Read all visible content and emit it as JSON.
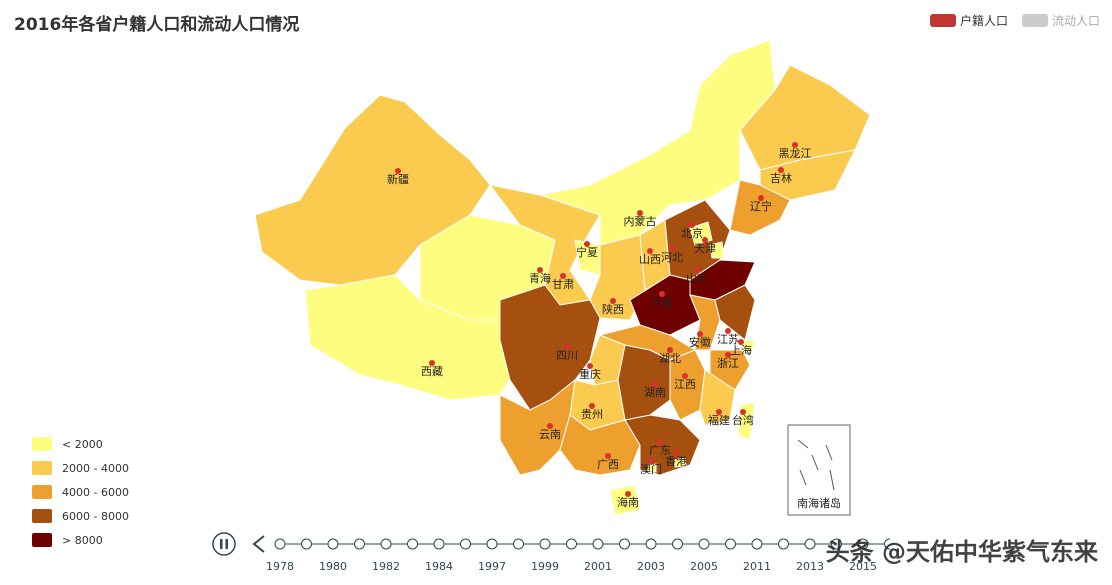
{
  "title": "2016年各省户籍人口和流动人口情况",
  "legend": {
    "items": [
      {
        "label": "户籍人口",
        "color": "#c23531",
        "active": true
      },
      {
        "label": "流动人口",
        "color": "#cccccc",
        "active": false
      }
    ]
  },
  "visual_map": {
    "ranges": [
      {
        "label": "< 2000",
        "color": "#fdfd7f"
      },
      {
        "label": "2000 - 4000",
        "color": "#fbcb4f"
      },
      {
        "label": "4000 - 6000",
        "color": "#eda02d"
      },
      {
        "label": "6000 - 8000",
        "color": "#a5500f"
      },
      {
        "label": "> 8000",
        "color": "#6e0000"
      }
    ]
  },
  "chart_data": {
    "type": "map",
    "title": "2016年各省户籍人口和流动人口情况",
    "provinces": [
      {
        "name": "新疆",
        "band": 1
      },
      {
        "name": "西藏",
        "band": 0
      },
      {
        "name": "青海",
        "band": 0
      },
      {
        "name": "甘肃",
        "band": 1
      },
      {
        "name": "内蒙古",
        "band": 0
      },
      {
        "name": "宁夏",
        "band": 0
      },
      {
        "name": "陕西",
        "band": 1
      },
      {
        "name": "山西",
        "band": 1
      },
      {
        "name": "河北",
        "band": 3
      },
      {
        "name": "北京",
        "band": 0
      },
      {
        "name": "天津",
        "band": 0
      },
      {
        "name": "山东",
        "band": 4
      },
      {
        "name": "河南",
        "band": 4
      },
      {
        "name": "黑龙江",
        "band": 1
      },
      {
        "name": "吉林",
        "band": 1
      },
      {
        "name": "辽宁",
        "band": 2
      },
      {
        "name": "四川",
        "band": 3
      },
      {
        "name": "重庆",
        "band": 1
      },
      {
        "name": "贵州",
        "band": 1
      },
      {
        "name": "云南",
        "band": 2
      },
      {
        "name": "广西",
        "band": 2
      },
      {
        "name": "广东",
        "band": 3
      },
      {
        "name": "湖南",
        "band": 3
      },
      {
        "name": "湖北",
        "band": 2
      },
      {
        "name": "江西",
        "band": 2
      },
      {
        "name": "安徽",
        "band": 2
      },
      {
        "name": "江苏",
        "band": 3
      },
      {
        "name": "上海",
        "band": 0
      },
      {
        "name": "浙江",
        "band": 2
      },
      {
        "name": "福建",
        "band": 1
      },
      {
        "name": "台湾",
        "band": 0
      },
      {
        "name": "香港",
        "band": 0
      },
      {
        "name": "澳门",
        "band": 0
      },
      {
        "name": "海南",
        "band": 0
      }
    ],
    "inset_label": "南海诸岛"
  },
  "timeline": {
    "years": [
      "1978",
      "1980",
      "1982",
      "1984",
      "1997",
      "1999",
      "2001",
      "2003",
      "2005",
      "2011",
      "2013",
      "2015"
    ],
    "current": "2016"
  },
  "watermark": "头条 @天佑中华紫气东来"
}
